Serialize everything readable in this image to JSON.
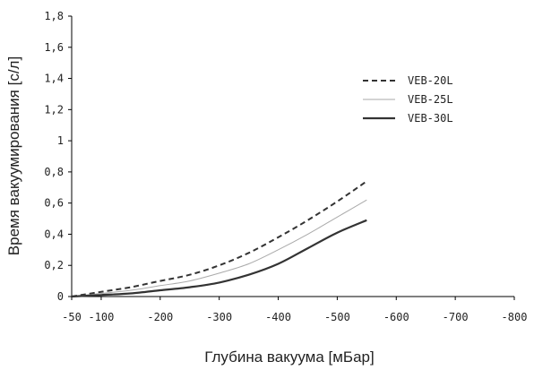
{
  "chart_data": {
    "type": "line",
    "title": "",
    "xlabel": "Глубина вакуума [мБар]",
    "ylabel": "Время вакуумирования [с/л]",
    "xlim": [
      -50,
      -800
    ],
    "ylim": [
      0,
      1.8
    ],
    "x_ticks": [
      -50,
      -100,
      -200,
      -300,
      -400,
      -500,
      -600,
      -700,
      -800
    ],
    "x_tick_labels": [
      "-50",
      "-100",
      "-200",
      "-300",
      "-400",
      "-500",
      "-600",
      "-700",
      "-800"
    ],
    "y_ticks": [
      0,
      0.2,
      0.4,
      0.6,
      0.8,
      1,
      1.2,
      1.4,
      1.6,
      1.8
    ],
    "y_tick_labels": [
      "0",
      "0,2",
      "0,4",
      "0,6",
      "0,8",
      "1",
      "1,2",
      "1,4",
      "1,6",
      "1,8"
    ],
    "grid": false,
    "legend_position": "top-right",
    "series": [
      {
        "name": "VEB-20L",
        "style": "dashed",
        "color": "#333333",
        "x": [
          -50,
          -100,
          -150,
          -200,
          -250,
          -300,
          -350,
          -400,
          -450,
          -500,
          -550
        ],
        "y": [
          0.0,
          0.03,
          0.06,
          0.1,
          0.14,
          0.2,
          0.28,
          0.38,
          0.49,
          0.61,
          0.74
        ]
      },
      {
        "name": "VEB-25L",
        "style": "solid-light",
        "color": "#aaaaaa",
        "x": [
          -50,
          -100,
          -150,
          -200,
          -250,
          -300,
          -350,
          -400,
          -450,
          -500,
          -550
        ],
        "y": [
          0.0,
          0.02,
          0.04,
          0.07,
          0.1,
          0.15,
          0.21,
          0.3,
          0.4,
          0.51,
          0.62
        ]
      },
      {
        "name": "VEB-30L",
        "style": "solid-bold",
        "color": "#333333",
        "x": [
          -50,
          -100,
          -150,
          -200,
          -250,
          -300,
          -350,
          -400,
          -450,
          -500,
          -550
        ],
        "y": [
          0.0,
          0.01,
          0.02,
          0.04,
          0.06,
          0.09,
          0.14,
          0.21,
          0.31,
          0.41,
          0.49
        ]
      }
    ]
  }
}
